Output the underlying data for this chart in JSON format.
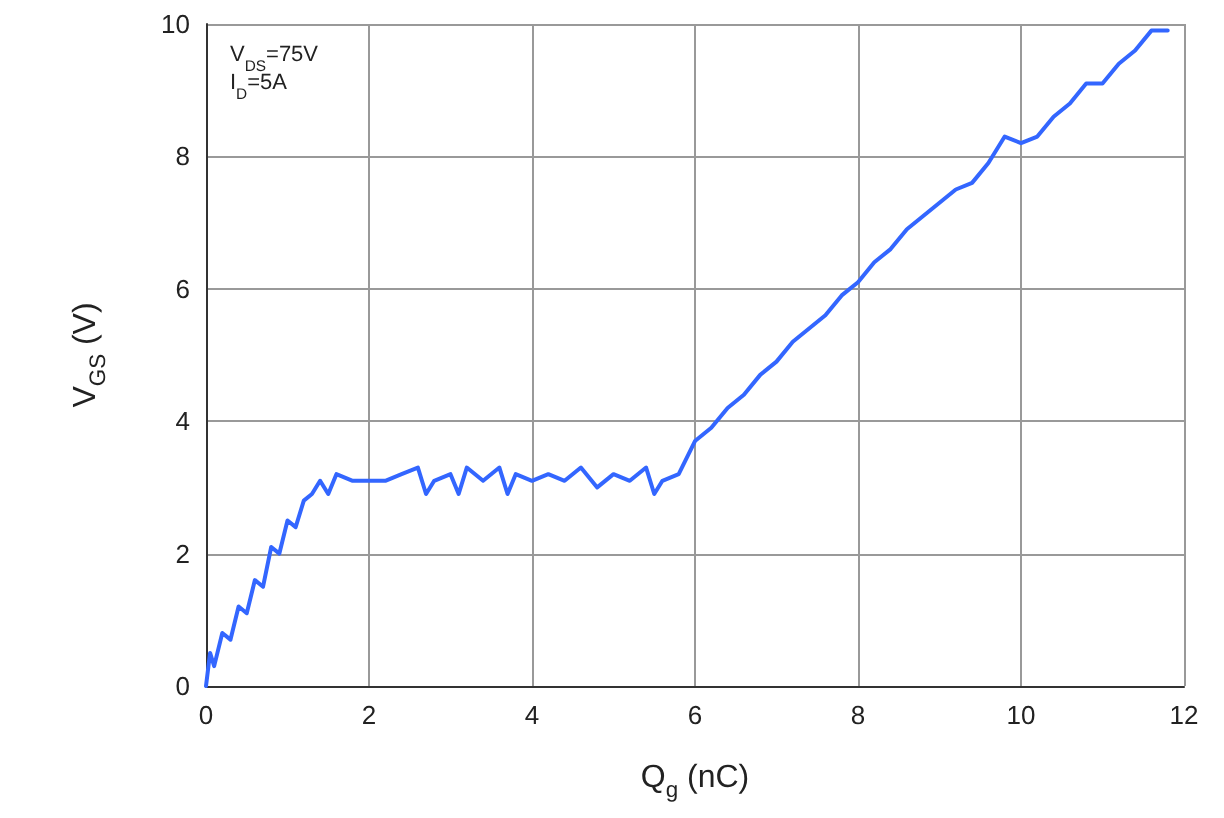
{
  "chart_data": {
    "type": "line",
    "xlabel": "Q$_{g}$ (nC)",
    "ylabel": "V$_{GS}$ (V)",
    "annotations": [
      "V$_{DS}$=75V",
      "I$_{D}$=5A"
    ],
    "x": [
      0,
      0.05,
      0.1,
      0.2,
      0.3,
      0.4,
      0.5,
      0.6,
      0.7,
      0.8,
      0.9,
      1.0,
      1.1,
      1.2,
      1.3,
      1.4,
      1.5,
      1.6,
      1.8,
      2.0,
      2.2,
      2.4,
      2.6,
      2.7,
      2.8,
      3.0,
      3.1,
      3.2,
      3.4,
      3.6,
      3.7,
      3.8,
      4.0,
      4.2,
      4.4,
      4.6,
      4.8,
      5.0,
      5.2,
      5.4,
      5.5,
      5.6,
      5.8,
      6.0,
      6.2,
      6.4,
      6.6,
      6.8,
      7.0,
      7.2,
      7.4,
      7.6,
      7.8,
      8.0,
      8.2,
      8.4,
      8.6,
      8.8,
      9.0,
      9.2,
      9.4,
      9.6,
      9.8,
      10.0,
      10.2,
      10.4,
      10.6,
      10.8,
      11.0,
      11.2,
      11.4,
      11.6,
      11.8
    ],
    "series": [
      {
        "color": "#3366ff",
        "values": [
          0,
          0.5,
          0.3,
          0.8,
          0.7,
          1.2,
          1.1,
          1.6,
          1.5,
          2.1,
          2.0,
          2.5,
          2.4,
          2.8,
          2.9,
          3.1,
          2.9,
          3.2,
          3.1,
          3.1,
          3.1,
          3.2,
          3.3,
          2.9,
          3.1,
          3.2,
          2.9,
          3.3,
          3.1,
          3.3,
          2.9,
          3.2,
          3.1,
          3.2,
          3.1,
          3.3,
          3.0,
          3.2,
          3.1,
          3.3,
          2.9,
          3.1,
          3.2,
          3.7,
          3.9,
          4.2,
          4.4,
          4.7,
          4.9,
          5.2,
          5.4,
          5.6,
          5.9,
          6.1,
          6.4,
          6.6,
          6.9,
          7.1,
          7.3,
          7.5,
          7.6,
          7.9,
          8.3,
          8.2,
          8.3,
          8.6,
          8.8,
          9.1,
          9.1,
          9.4,
          9.6,
          9.9,
          9.9
        ]
      }
    ],
    "xlim": [
      0,
      12
    ],
    "xticks": [
      0,
      2,
      4,
      6,
      8,
      10,
      12
    ],
    "ylim": [
      0,
      10
    ],
    "yticks": [
      0,
      2,
      4,
      6,
      8,
      10
    ],
    "grid": true,
    "marker": "none",
    "line_style": "solid"
  }
}
